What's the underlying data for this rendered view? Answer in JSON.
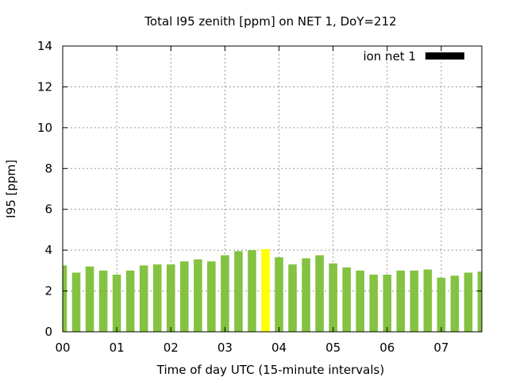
{
  "chart_data": {
    "type": "bar",
    "title": "Total I95 zenith [ppm] on NET 1, DoY=212",
    "xlabel": "Time of day UTC (15-minute intervals)",
    "ylabel": "I95 [ppm]",
    "ylim": [
      0,
      14
    ],
    "yticks": [
      0,
      2,
      4,
      6,
      8,
      10,
      12,
      14
    ],
    "xticks": [
      "00",
      "01",
      "02",
      "03",
      "04",
      "05",
      "06",
      "07"
    ],
    "grid": true,
    "legend_position": "top-right",
    "series": [
      {
        "name": "ion net 1",
        "legend_color": "#000000",
        "bar_color": "#84c241",
        "highlight_color": "#ffff00",
        "highlight_index": 15,
        "x_hours": [
          0,
          0.25,
          0.5,
          0.75,
          1,
          1.25,
          1.5,
          1.75,
          2,
          2.25,
          2.5,
          2.75,
          3,
          3.25,
          3.5,
          3.75,
          4,
          4.25,
          4.5,
          4.75,
          5,
          5.25,
          5.5,
          5.75,
          6,
          6.25,
          6.5,
          6.75,
          7,
          7.25,
          7.5,
          7.75
        ],
        "values": [
          3.25,
          2.9,
          3.2,
          3.0,
          2.8,
          3.0,
          3.25,
          3.3,
          3.3,
          3.45,
          3.55,
          3.45,
          3.75,
          3.95,
          4.0,
          4.05,
          3.65,
          3.3,
          3.6,
          3.75,
          3.35,
          3.15,
          3.0,
          2.8,
          2.8,
          3.0,
          3.0,
          3.05,
          2.65,
          2.75,
          2.9,
          2.95
        ]
      }
    ]
  }
}
